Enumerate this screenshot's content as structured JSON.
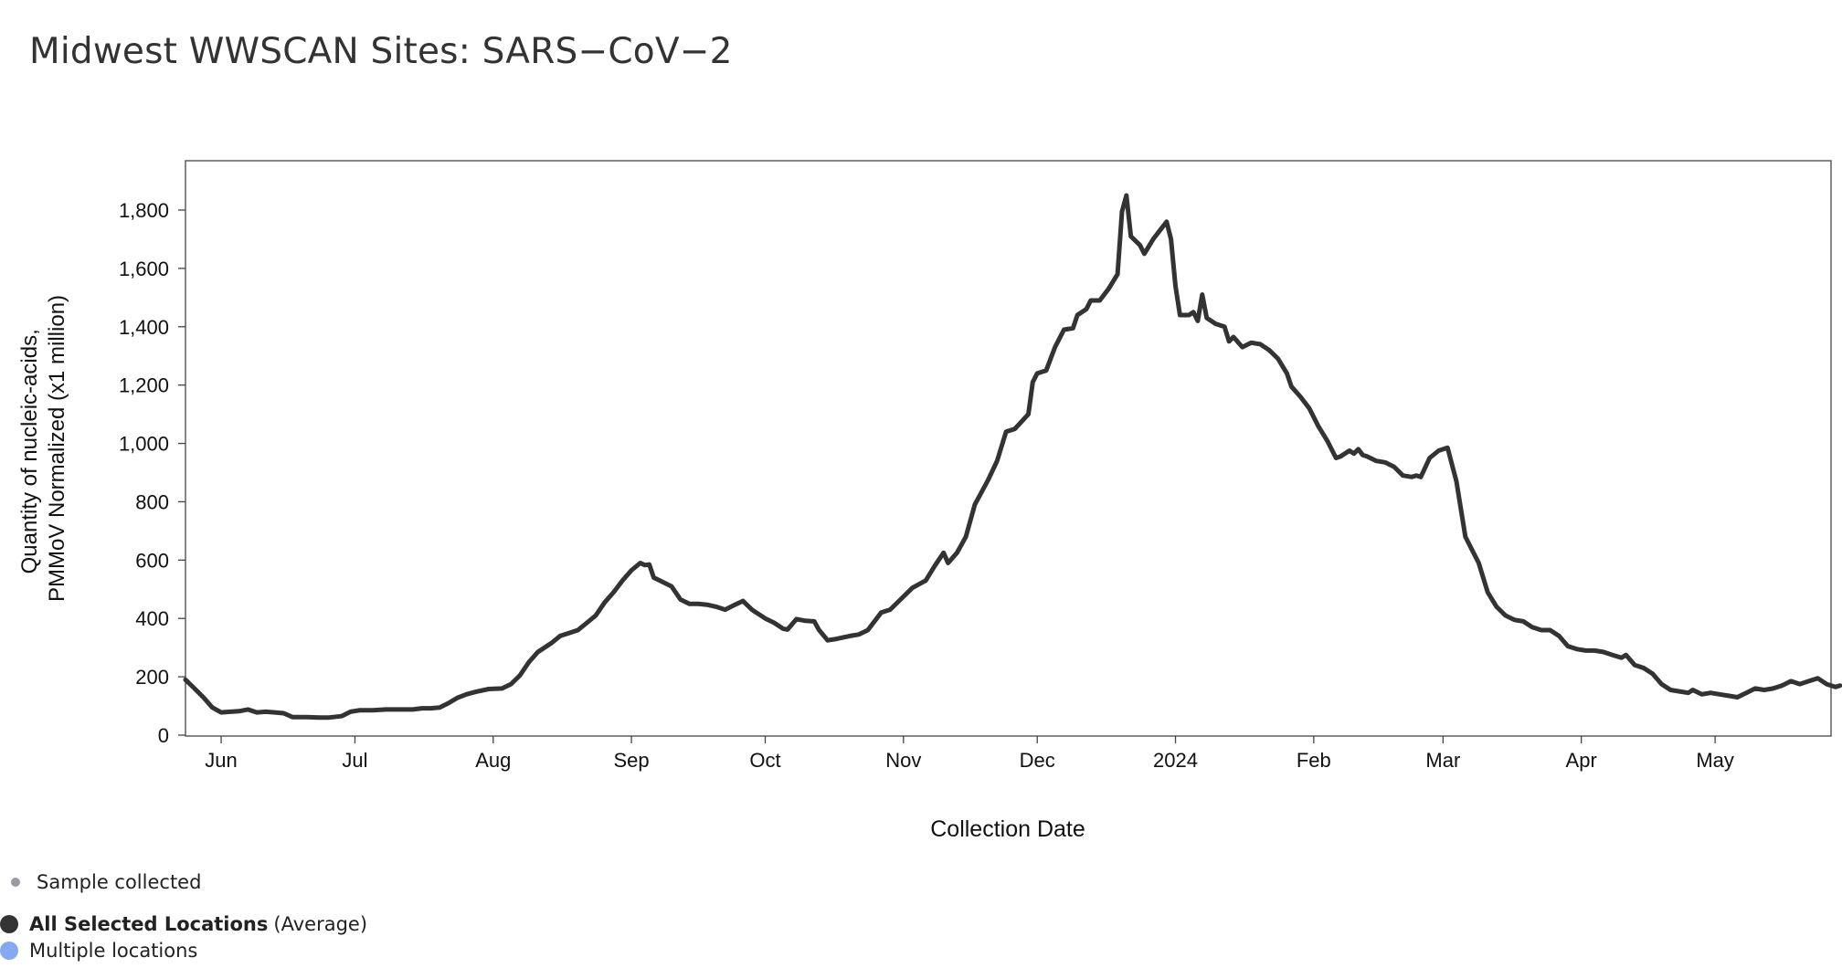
{
  "title": "Midwest WWSCAN Sites: SARS−CoV−2",
  "colors": {
    "line": "#333333",
    "sample_dot": "#9a9aa4",
    "all_selected": "#333333",
    "multiple_locations": "#86a8f0",
    "frame": "#444444"
  },
  "legend": {
    "sample": "Sample collected",
    "all_selected": "All Selected Locations",
    "all_selected_suffix": "(Average)",
    "multiple": "Multiple locations"
  },
  "chart_data": {
    "type": "line",
    "title": "Midwest WWSCAN Sites: SARS−CoV−2",
    "xlabel": "Collection Date",
    "ylabel_lines": [
      "Quantity of nucleic-acids,",
      "PMMoV Normalized (x1 million)"
    ],
    "ylim": [
      0,
      1950
    ],
    "xlim": [
      "2023-05-24",
      "2024-05-27"
    ],
    "y_ticks": [
      0,
      200,
      400,
      600,
      800,
      1000,
      1200,
      1400,
      1600,
      1800
    ],
    "y_tick_labels": [
      "0",
      "200",
      "400",
      "600",
      "800",
      "1,000",
      "1,200",
      "1,400",
      "1,600",
      "1,800"
    ],
    "x_ticks": [
      {
        "date": "2023-06-01",
        "label": "Jun"
      },
      {
        "date": "2023-07-01",
        "label": "Jul"
      },
      {
        "date": "2023-08-01",
        "label": "Aug"
      },
      {
        "date": "2023-09-01",
        "label": "Sep"
      },
      {
        "date": "2023-10-01",
        "label": "Oct"
      },
      {
        "date": "2023-11-01",
        "label": "Nov"
      },
      {
        "date": "2023-12-01",
        "label": "Dec"
      },
      {
        "date": "2024-01-01",
        "label": "2024"
      },
      {
        "date": "2024-02-01",
        "label": "Feb"
      },
      {
        "date": "2024-03-01",
        "label": "Mar"
      },
      {
        "date": "2024-04-01",
        "label": "Apr"
      },
      {
        "date": "2024-05-01",
        "label": "May"
      }
    ],
    "grid": false,
    "series": [
      {
        "legend": "All Selected Locations",
        "points": [
          [
            "2023-05-24",
            190
          ],
          [
            "2023-05-26",
            160
          ],
          [
            "2023-05-28",
            130
          ],
          [
            "2023-05-30",
            95
          ],
          [
            "2023-06-01",
            78
          ],
          [
            "2023-06-03",
            80
          ],
          [
            "2023-06-05",
            82
          ],
          [
            "2023-06-07",
            88
          ],
          [
            "2023-06-09",
            78
          ],
          [
            "2023-06-11",
            80
          ],
          [
            "2023-06-13",
            78
          ],
          [
            "2023-06-15",
            75
          ],
          [
            "2023-06-17",
            62
          ],
          [
            "2023-06-20",
            62
          ],
          [
            "2023-06-23",
            60
          ],
          [
            "2023-06-25",
            60
          ],
          [
            "2023-06-28",
            65
          ],
          [
            "2023-06-30",
            80
          ],
          [
            "2023-07-02",
            85
          ],
          [
            "2023-07-05",
            85
          ],
          [
            "2023-07-08",
            88
          ],
          [
            "2023-07-11",
            88
          ],
          [
            "2023-07-14",
            88
          ],
          [
            "2023-07-16",
            92
          ],
          [
            "2023-07-18",
            92
          ],
          [
            "2023-07-20",
            95
          ],
          [
            "2023-07-22",
            110
          ],
          [
            "2023-07-24",
            128
          ],
          [
            "2023-07-26",
            140
          ],
          [
            "2023-07-28",
            148
          ],
          [
            "2023-07-31",
            158
          ],
          [
            "2023-08-03",
            160
          ],
          [
            "2023-08-05",
            175
          ],
          [
            "2023-08-07",
            205
          ],
          [
            "2023-08-09",
            250
          ],
          [
            "2023-08-11",
            285
          ],
          [
            "2023-08-14",
            315
          ],
          [
            "2023-08-16",
            340
          ],
          [
            "2023-08-18",
            350
          ],
          [
            "2023-08-20",
            360
          ],
          [
            "2023-08-22",
            385
          ],
          [
            "2023-08-24",
            410
          ],
          [
            "2023-08-26",
            455
          ],
          [
            "2023-08-28",
            490
          ],
          [
            "2023-08-30",
            530
          ],
          [
            "2023-09-01",
            565
          ],
          [
            "2023-09-03",
            590
          ],
          [
            "2023-09-04",
            583
          ],
          [
            "2023-09-05",
            585
          ],
          [
            "2023-09-06",
            540
          ],
          [
            "2023-09-08",
            525
          ],
          [
            "2023-09-10",
            510
          ],
          [
            "2023-09-12",
            465
          ],
          [
            "2023-09-14",
            450
          ],
          [
            "2023-09-16",
            450
          ],
          [
            "2023-09-18",
            447
          ],
          [
            "2023-09-20",
            440
          ],
          [
            "2023-09-22",
            430
          ],
          [
            "2023-09-24",
            445
          ],
          [
            "2023-09-26",
            460
          ],
          [
            "2023-09-28",
            430
          ],
          [
            "2023-10-01",
            400
          ],
          [
            "2023-10-03",
            385
          ],
          [
            "2023-10-05",
            365
          ],
          [
            "2023-10-06",
            362
          ],
          [
            "2023-10-08",
            398
          ],
          [
            "2023-10-10",
            392
          ],
          [
            "2023-10-12",
            390
          ],
          [
            "2023-10-13",
            362
          ],
          [
            "2023-10-15",
            325
          ],
          [
            "2023-10-17",
            330
          ],
          [
            "2023-10-20",
            340
          ],
          [
            "2023-10-22",
            345
          ],
          [
            "2023-10-24",
            360
          ],
          [
            "2023-10-27",
            420
          ],
          [
            "2023-10-29",
            430
          ],
          [
            "2023-10-31",
            460
          ],
          [
            "2023-11-03",
            505
          ],
          [
            "2023-11-06",
            530
          ],
          [
            "2023-11-08",
            580
          ],
          [
            "2023-11-10",
            625
          ],
          [
            "2023-11-11",
            590
          ],
          [
            "2023-11-13",
            625
          ],
          [
            "2023-11-15",
            680
          ],
          [
            "2023-11-17",
            790
          ],
          [
            "2023-11-20",
            875
          ],
          [
            "2023-11-22",
            940
          ],
          [
            "2023-11-24",
            1040
          ],
          [
            "2023-11-26",
            1050
          ],
          [
            "2023-11-29",
            1100
          ],
          [
            "2023-11-30",
            1210
          ],
          [
            "2023-12-01",
            1240
          ],
          [
            "2023-12-03",
            1250
          ],
          [
            "2023-12-05",
            1330
          ],
          [
            "2023-12-07",
            1390
          ],
          [
            "2023-12-09",
            1395
          ],
          [
            "2023-12-10",
            1440
          ],
          [
            "2023-12-12",
            1460
          ],
          [
            "2023-12-13",
            1490
          ],
          [
            "2023-12-15",
            1490
          ],
          [
            "2023-12-17",
            1530
          ],
          [
            "2023-12-19",
            1580
          ],
          [
            "2023-12-20",
            1795
          ],
          [
            "2023-12-21",
            1850
          ],
          [
            "2023-12-22",
            1710
          ],
          [
            "2023-12-24",
            1680
          ],
          [
            "2023-12-25",
            1650
          ],
          [
            "2023-12-27",
            1700
          ],
          [
            "2023-12-29",
            1740
          ],
          [
            "2023-12-30",
            1760
          ],
          [
            "2023-12-31",
            1700
          ],
          [
            "2024-01-01",
            1540
          ],
          [
            "2024-01-02",
            1440
          ],
          [
            "2024-01-04",
            1440
          ],
          [
            "2024-01-05",
            1450
          ],
          [
            "2024-01-06",
            1420
          ],
          [
            "2024-01-07",
            1510
          ],
          [
            "2024-01-08",
            1430
          ],
          [
            "2024-01-10",
            1410
          ],
          [
            "2024-01-12",
            1400
          ],
          [
            "2024-01-13",
            1350
          ],
          [
            "2024-01-14",
            1365
          ],
          [
            "2024-01-16",
            1330
          ],
          [
            "2024-01-18",
            1345
          ],
          [
            "2024-01-20",
            1340
          ],
          [
            "2024-01-22",
            1320
          ],
          [
            "2024-01-24",
            1290
          ],
          [
            "2024-01-26",
            1240
          ],
          [
            "2024-01-27",
            1195
          ],
          [
            "2024-01-29",
            1160
          ],
          [
            "2024-01-31",
            1120
          ],
          [
            "2024-02-02",
            1060
          ],
          [
            "2024-02-04",
            1010
          ],
          [
            "2024-02-06",
            950
          ],
          [
            "2024-02-07",
            955
          ],
          [
            "2024-02-09",
            975
          ],
          [
            "2024-02-10",
            965
          ],
          [
            "2024-02-11",
            980
          ],
          [
            "2024-02-12",
            960
          ],
          [
            "2024-02-13",
            955
          ],
          [
            "2024-02-15",
            940
          ],
          [
            "2024-02-17",
            935
          ],
          [
            "2024-02-19",
            920
          ],
          [
            "2024-02-21",
            890
          ],
          [
            "2024-02-23",
            885
          ],
          [
            "2024-02-24",
            890
          ],
          [
            "2024-02-25",
            885
          ],
          [
            "2024-02-27",
            950
          ],
          [
            "2024-02-29",
            975
          ],
          [
            "2024-03-02",
            985
          ],
          [
            "2024-03-04",
            870
          ],
          [
            "2024-03-06",
            680
          ],
          [
            "2024-03-08",
            620
          ],
          [
            "2024-03-09",
            590
          ],
          [
            "2024-03-11",
            490
          ],
          [
            "2024-03-13",
            440
          ],
          [
            "2024-03-15",
            410
          ],
          [
            "2024-03-17",
            395
          ],
          [
            "2024-03-19",
            390
          ],
          [
            "2024-03-21",
            370
          ],
          [
            "2024-03-23",
            360
          ],
          [
            "2024-03-25",
            360
          ],
          [
            "2024-03-27",
            340
          ],
          [
            "2024-03-29",
            305
          ],
          [
            "2024-03-31",
            295
          ],
          [
            "2024-04-02",
            290
          ],
          [
            "2024-04-04",
            290
          ],
          [
            "2024-04-06",
            285
          ],
          [
            "2024-04-08",
            275
          ],
          [
            "2024-04-10",
            265
          ],
          [
            "2024-04-11",
            275
          ],
          [
            "2024-04-13",
            240
          ],
          [
            "2024-04-15",
            230
          ],
          [
            "2024-04-17",
            210
          ],
          [
            "2024-04-19",
            175
          ],
          [
            "2024-04-21",
            155
          ],
          [
            "2024-04-23",
            150
          ],
          [
            "2024-04-25",
            145
          ],
          [
            "2024-04-26",
            155
          ],
          [
            "2024-04-28",
            140
          ],
          [
            "2024-04-30",
            145
          ],
          [
            "2024-05-02",
            140
          ],
          [
            "2024-05-04",
            135
          ],
          [
            "2024-05-06",
            130
          ],
          [
            "2024-05-08",
            145
          ],
          [
            "2024-05-10",
            160
          ],
          [
            "2024-05-12",
            155
          ],
          [
            "2024-05-14",
            160
          ],
          [
            "2024-05-16",
            170
          ],
          [
            "2024-05-18",
            185
          ],
          [
            "2024-05-20",
            175
          ],
          [
            "2024-05-22",
            185
          ],
          [
            "2024-05-24",
            195
          ],
          [
            "2024-05-26",
            175
          ],
          [
            "2024-05-28",
            165
          ],
          [
            "2024-05-29",
            170
          ]
        ]
      }
    ]
  }
}
